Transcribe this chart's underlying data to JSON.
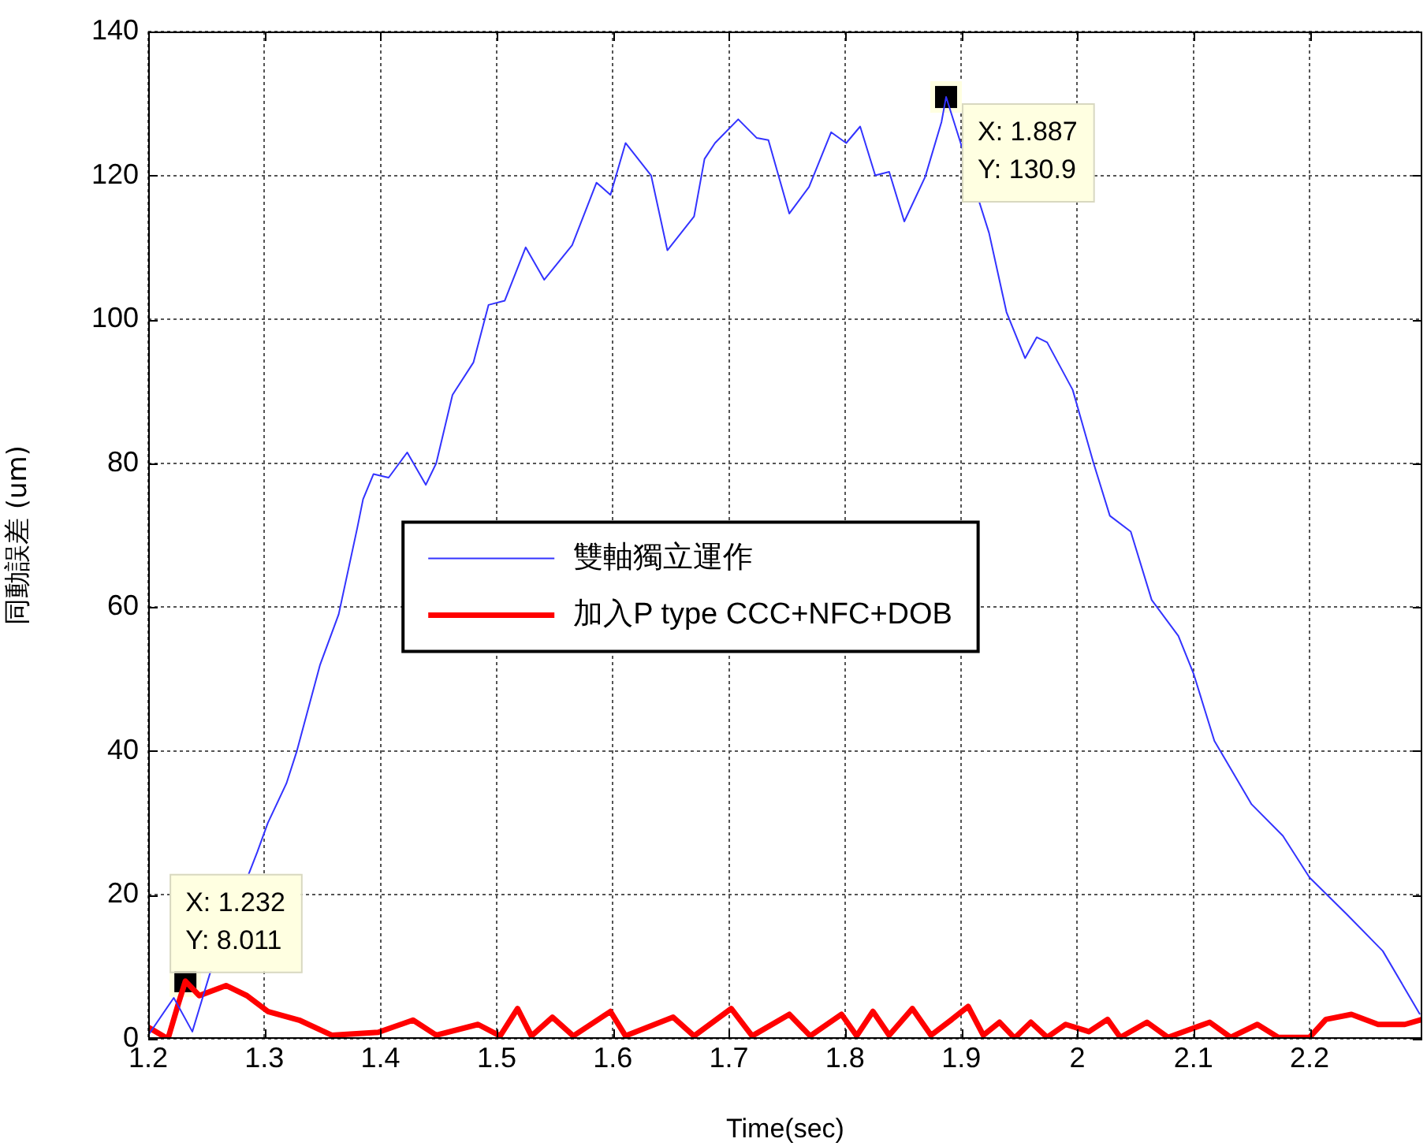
{
  "chart_data": {
    "type": "line",
    "xlabel": "Time(sec)",
    "ylabel": "同動誤差 (um)",
    "xlim": [
      1.2,
      2.297
    ],
    "xticks": [
      1.2,
      1.3,
      1.4,
      1.5,
      1.6,
      1.7,
      1.8,
      1.9,
      {
        "value": 2.0,
        "label": "2"
      },
      2.1,
      2.2
    ],
    "ylim": [
      0,
      140
    ],
    "yticks": [
      0,
      20,
      40,
      60,
      80,
      100,
      120,
      140
    ],
    "grid": true,
    "legend": "center",
    "marker": "none",
    "line_style": "solid",
    "series": [
      {
        "name": "雙軸獨立運作",
        "color": "#3333ff",
        "x": [
          1.2,
          1.222,
          1.238,
          1.253,
          1.294,
          1.303,
          1.319,
          1.328,
          1.348,
          1.364,
          1.38,
          1.385,
          1.394,
          1.407,
          1.423,
          1.439,
          1.448,
          1.462,
          1.48,
          1.493,
          1.507,
          1.525,
          1.541,
          1.565,
          1.586,
          1.598,
          1.611,
          1.633,
          1.647,
          1.67,
          1.679,
          1.688,
          1.708,
          1.724,
          1.734,
          1.752,
          1.769,
          1.788,
          1.801,
          1.813,
          1.826,
          1.838,
          1.851,
          1.869,
          1.883,
          1.887,
          1.924,
          1.939,
          1.955,
          1.965,
          1.974,
          1.996,
          2.014,
          2.028,
          2.046,
          2.064,
          2.087,
          2.1,
          2.118,
          2.15,
          2.177,
          2.2,
          2.232,
          2.263,
          2.295
        ],
        "values": [
          0.5,
          5.7,
          1,
          9,
          26,
          30,
          35.5,
          40,
          52,
          59,
          71,
          75,
          78.5,
          78,
          81.5,
          77,
          80,
          89.5,
          94,
          102,
          102.6,
          110,
          105.5,
          110.3,
          119,
          117.3,
          124.5,
          120,
          109.6,
          114.3,
          122.3,
          124.5,
          127.8,
          125.2,
          124.9,
          114.7,
          118.4,
          126,
          124.5,
          126.8,
          120,
          120.5,
          113.6,
          119.8,
          127.4,
          130.9,
          112,
          101,
          94.6,
          97.5,
          96.8,
          90.2,
          80,
          72.7,
          70.5,
          61,
          56,
          50.8,
          41.4,
          32.6,
          28.2,
          22.4,
          17.3,
          12.2,
          3.4
        ]
      },
      {
        "name": "加入P type CCC+NFC+DOB",
        "color": "#ff0000",
        "x": [
          1.2,
          1.217,
          1.226,
          1.232,
          1.244,
          1.267,
          1.285,
          1.303,
          1.33,
          1.358,
          1.398,
          1.428,
          1.448,
          1.484,
          1.503,
          1.518,
          1.53,
          1.548,
          1.566,
          1.598,
          1.611,
          1.652,
          1.67,
          1.702,
          1.72,
          1.752,
          1.77,
          1.797,
          1.81,
          1.824,
          1.838,
          1.858,
          1.874,
          1.892,
          1.906,
          1.919,
          1.933,
          1.946,
          1.96,
          1.974,
          1.99,
          2.01,
          2.026,
          2.037,
          2.06,
          2.078,
          2.114,
          2.132,
          2.155,
          2.173,
          2.2,
          2.214,
          2.236,
          2.259,
          2.282,
          2.297
        ],
        "values": [
          1.6,
          0,
          4.9,
          8.011,
          6,
          7.4,
          6,
          3.8,
          2.6,
          0.5,
          0.9,
          2.6,
          0.5,
          2,
          0.4,
          4.2,
          0.4,
          3,
          0.4,
          3.8,
          0.4,
          3,
          0.4,
          4.2,
          0.4,
          3.4,
          0.4,
          3.4,
          0.4,
          3.8,
          0.5,
          4.2,
          0.5,
          2.7,
          4.5,
          0.5,
          2.3,
          0.1,
          2.3,
          0.2,
          2,
          1,
          2.7,
          0.2,
          2.3,
          0.2,
          2.3,
          0.2,
          2,
          0.2,
          0.2,
          2.7,
          3.4,
          2,
          2,
          2.7
        ]
      }
    ],
    "annotations": [
      {
        "text": "X: 1.232\nY: 8.011",
        "x": 1.232,
        "y": 8.011
      },
      {
        "text": "X: 1.887\nY: 130.9",
        "x": 1.887,
        "y": 130.9
      }
    ]
  }
}
